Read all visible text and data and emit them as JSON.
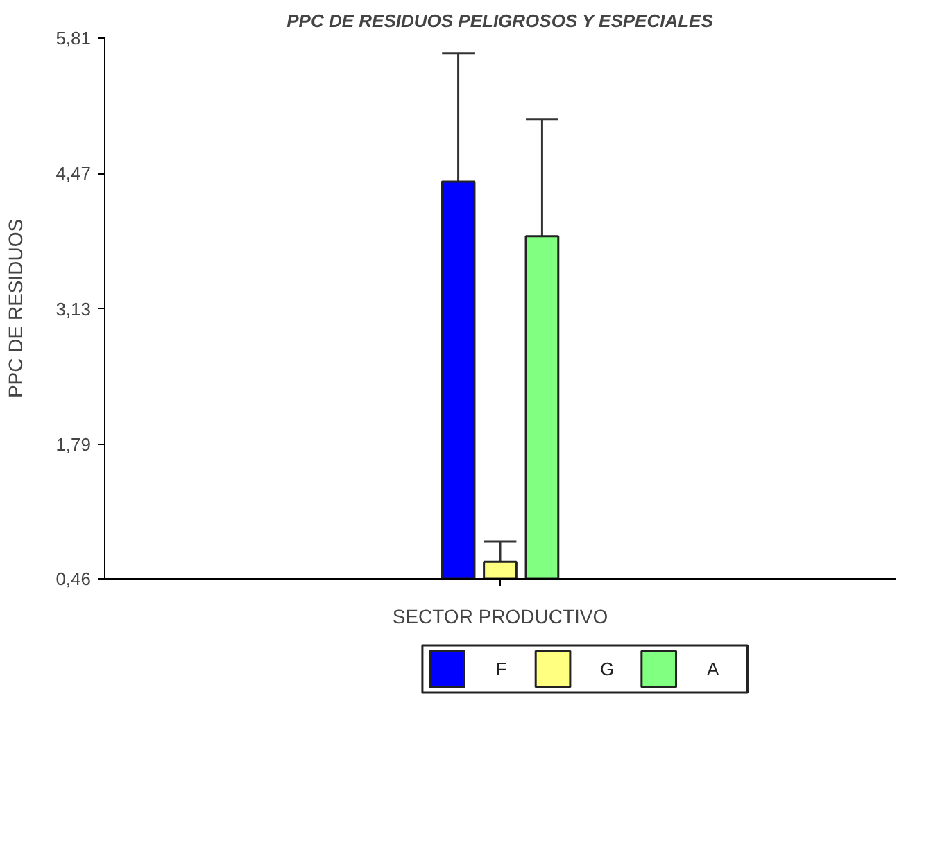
{
  "chart_data": {
    "type": "bar",
    "title": "PPC DE RESIDUOS PELIGROSOS Y ESPECIALES",
    "ylabel": "PPC DE RESIDUOS",
    "categories": [
      "SECTOR PRODUCTIVO"
    ],
    "series": [
      {
        "name": "F",
        "color": "#0000ff",
        "values": [
          4.39
        ],
        "errors": [
          [
            4.39,
            5.66
          ]
        ]
      },
      {
        "name": "G",
        "color": "#ffff80",
        "values": [
          0.63
        ],
        "errors": [
          [
            0.63,
            0.83
          ]
        ]
      },
      {
        "name": "A",
        "color": "#80ff80",
        "values": [
          3.85
        ],
        "errors": [
          [
            3.85,
            5.01
          ]
        ]
      }
    ],
    "ylim": [
      0.46,
      5.81
    ],
    "yticks": [
      {
        "value": 0.46,
        "label": "0,46"
      },
      {
        "value": 1.79,
        "label": "1,79"
      },
      {
        "value": 3.13,
        "label": "3,13"
      },
      {
        "value": 4.47,
        "label": "4,47"
      },
      {
        "value": 5.81,
        "label": "5,81"
      }
    ],
    "grid": false,
    "legend": "bottom"
  }
}
